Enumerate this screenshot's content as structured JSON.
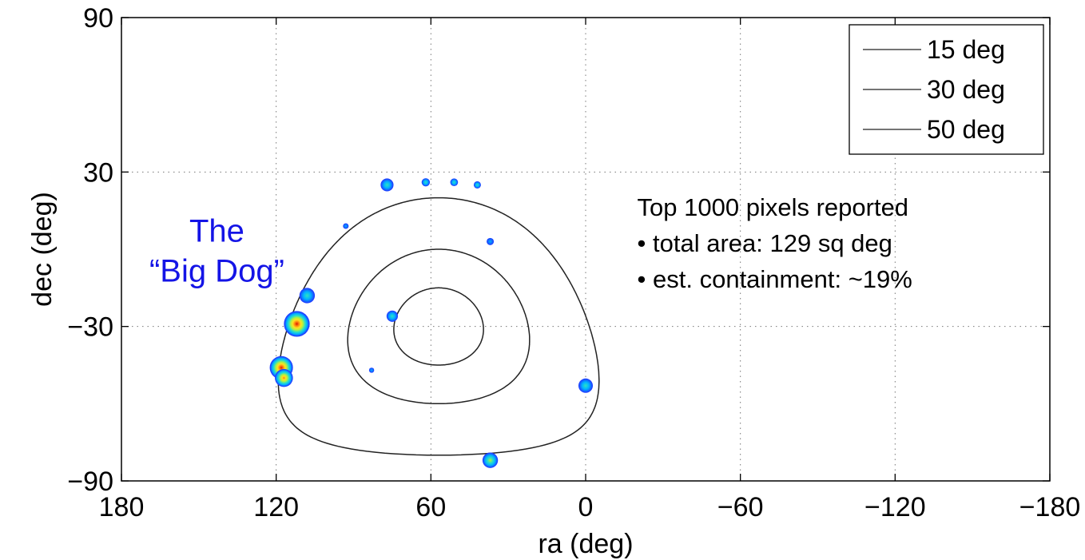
{
  "chart_data": {
    "type": "scatter",
    "title": "",
    "xlabel": "ra (deg)",
    "ylabel": "dec (deg)",
    "xlim": [
      180,
      -180
    ],
    "ylim": [
      -90,
      90
    ],
    "x_ticks": [
      180,
      120,
      60,
      0,
      -60,
      -120,
      -180
    ],
    "x_tick_labels": [
      "180",
      "120",
      "60",
      "0",
      "−60",
      "−120",
      "−180"
    ],
    "y_ticks": [
      90,
      30,
      -30,
      -90
    ],
    "y_tick_labels": [
      "90",
      "30",
      "−30",
      "−90"
    ],
    "grid": true,
    "legend_position": "top-right",
    "legend": [
      {
        "label": "15 deg",
        "color": "#222222"
      },
      {
        "label": "30 deg",
        "color": "#222222"
      },
      {
        "label": "50 deg",
        "color": "#222222"
      }
    ],
    "contours": [
      {
        "name": "15 deg",
        "center_ra": 57,
        "center_dec": -30,
        "radius": 15
      },
      {
        "name": "30 deg",
        "center_ra": 57,
        "center_dec": -30,
        "radius": 30
      },
      {
        "name": "50 deg",
        "center_ra": 57,
        "center_dec": -30,
        "radius": 50
      }
    ],
    "colormap": [
      "#1e3cff",
      "#00b4ff",
      "#30e0c0",
      "#b4f040",
      "#ffe020",
      "#ff8010",
      "#d61a00"
    ],
    "blobs": [
      {
        "ra": 112,
        "dec": -29,
        "r": 5,
        "intensity": 1.0
      },
      {
        "ra": 108,
        "dec": -18,
        "r": 3,
        "intensity": 0.35
      },
      {
        "ra": 118,
        "dec": -46,
        "r": 4.5,
        "intensity": 1.0
      },
      {
        "ra": 117,
        "dec": -50,
        "r": 3.5,
        "intensity": 0.8
      },
      {
        "ra": 77,
        "dec": 25,
        "r": 2.5,
        "intensity": 0.3
      },
      {
        "ra": 62,
        "dec": 26,
        "r": 1.6,
        "intensity": 0.3
      },
      {
        "ra": 51,
        "dec": 26,
        "r": 1.5,
        "intensity": 0.3
      },
      {
        "ra": 42,
        "dec": 25,
        "r": 1.4,
        "intensity": 0.25
      },
      {
        "ra": 37,
        "dec": 3,
        "r": 1.4,
        "intensity": 0.1
      },
      {
        "ra": 93,
        "dec": 9,
        "r": 1.1,
        "intensity": 0.05
      },
      {
        "ra": 75,
        "dec": -26,
        "r": 2.2,
        "intensity": 0.3
      },
      {
        "ra": 83,
        "dec": -47,
        "r": 1.0,
        "intensity": 0.05
      },
      {
        "ra": 0,
        "dec": -53,
        "r": 2.8,
        "intensity": 0.3
      },
      {
        "ra": 37,
        "dec": -82,
        "r": 3,
        "intensity": 0.55
      }
    ],
    "annotations": [
      {
        "lines": [
          "The",
          "“Big Dog”"
        ],
        "ra": 143,
        "dec": 3,
        "color": "#1414e6"
      },
      {
        "lines": [
          "Top 1000 pixels reported",
          "• total area: 129 sq deg",
          "• est. containment: ~19%"
        ],
        "ra": -20,
        "dec": 13,
        "color": "#000000"
      }
    ]
  }
}
